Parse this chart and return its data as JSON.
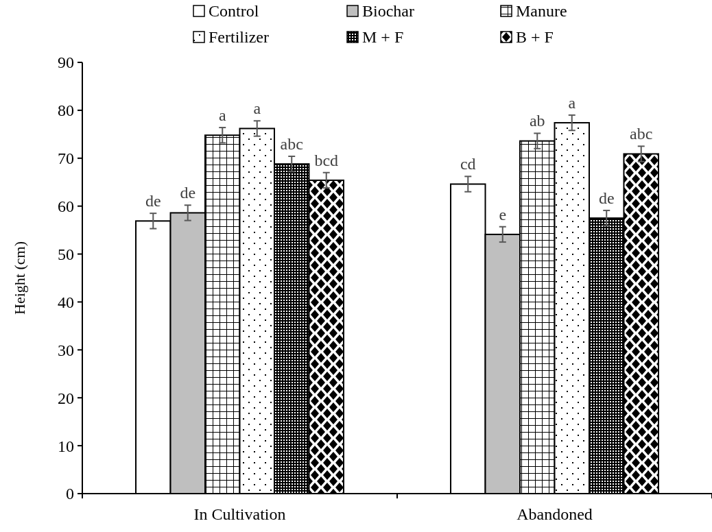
{
  "chart_data": {
    "type": "bar",
    "ylabel": "Height  (cm)",
    "categories": [
      "In Cultivation",
      "Abandoned"
    ],
    "ylim": [
      0,
      90
    ],
    "yticks": [
      0,
      10,
      20,
      30,
      40,
      50,
      60,
      70,
      80,
      90
    ],
    "grid": false,
    "legend": "top",
    "series": [
      {
        "name": "Control",
        "color": "#ffffff",
        "values": [
          56.9,
          64.6
        ],
        "errors": [
          1.6,
          1.6
        ],
        "value_labels": [
          "de",
          "cd"
        ]
      },
      {
        "name": "Biochar",
        "color": "#bfbfbf",
        "values": [
          58.6,
          54.1
        ],
        "errors": [
          1.6,
          1.6
        ],
        "value_labels": [
          "de",
          "e"
        ]
      },
      {
        "name": "Manure",
        "color": "#000000",
        "values": [
          74.8,
          73.6
        ],
        "errors": [
          1.6,
          1.6
        ],
        "value_labels": [
          "a",
          "ab"
        ]
      },
      {
        "name": "Fertilizer",
        "color": "#ffffff",
        "values": [
          76.2,
          77.4
        ],
        "errors": [
          1.6,
          1.6
        ],
        "value_labels": [
          "a",
          "a"
        ]
      },
      {
        "name": "M + F",
        "color": "#000000",
        "values": [
          68.8,
          57.5
        ],
        "errors": [
          1.6,
          1.6
        ],
        "value_labels": [
          "abc",
          "de"
        ]
      },
      {
        "name": "B + F",
        "color": "#000000",
        "values": [
          65.4,
          70.9
        ],
        "errors": [
          1.6,
          1.6
        ],
        "value_labels": [
          "bcd",
          "abc"
        ]
      }
    ]
  }
}
